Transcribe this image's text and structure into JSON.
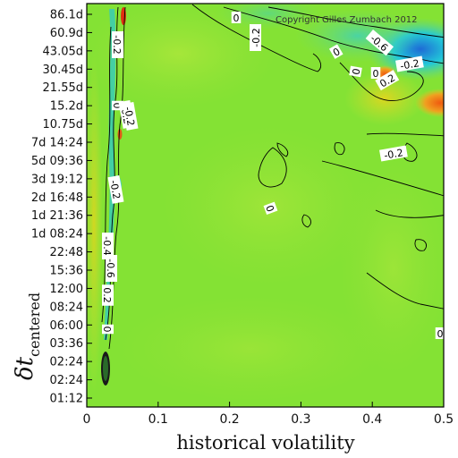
{
  "chart_data": {
    "type": "heatmap",
    "xlabel": "historical volatility",
    "ylabel_main": "δt",
    "ylabel_sub": "centered",
    "xlim": [
      0,
      0.5
    ],
    "x_ticks": [
      "0",
      "0.1",
      "0.2",
      "0.3",
      "0.4",
      "0.5"
    ],
    "y_ticks": [
      "86.1d",
      "60.9d",
      "43.05d",
      "30.45d",
      "21.55d",
      "15.2d",
      "10.75d",
      "7d 14:24",
      "5d 09:36",
      "3d 19:12",
      "2d 16:48",
      "1d 21:36",
      "1d 08:24",
      "22:48",
      "15:36",
      "12:00",
      "08:24",
      "06:00",
      "03:36",
      "02:24",
      "02:24",
      "01:12"
    ],
    "copyright": "Copyright Gilles Zumbach 2012",
    "background_color": "#84e234",
    "color_scale": [
      "#1e6bd6",
      "#22c8d8",
      "#84e234",
      "#e8c41c",
      "#f07020",
      "#c81e10"
    ],
    "contour_labels": [
      "0",
      "-0.2",
      "-0.2",
      "0",
      "-0.6",
      "-0.2",
      "0",
      "0.2",
      "0",
      "-0.2",
      "-0.2",
      "-0.2",
      "0",
      "-0.4",
      "-0.6",
      "0.2",
      "0",
      "0",
      "0",
      "-0.2"
    ]
  }
}
